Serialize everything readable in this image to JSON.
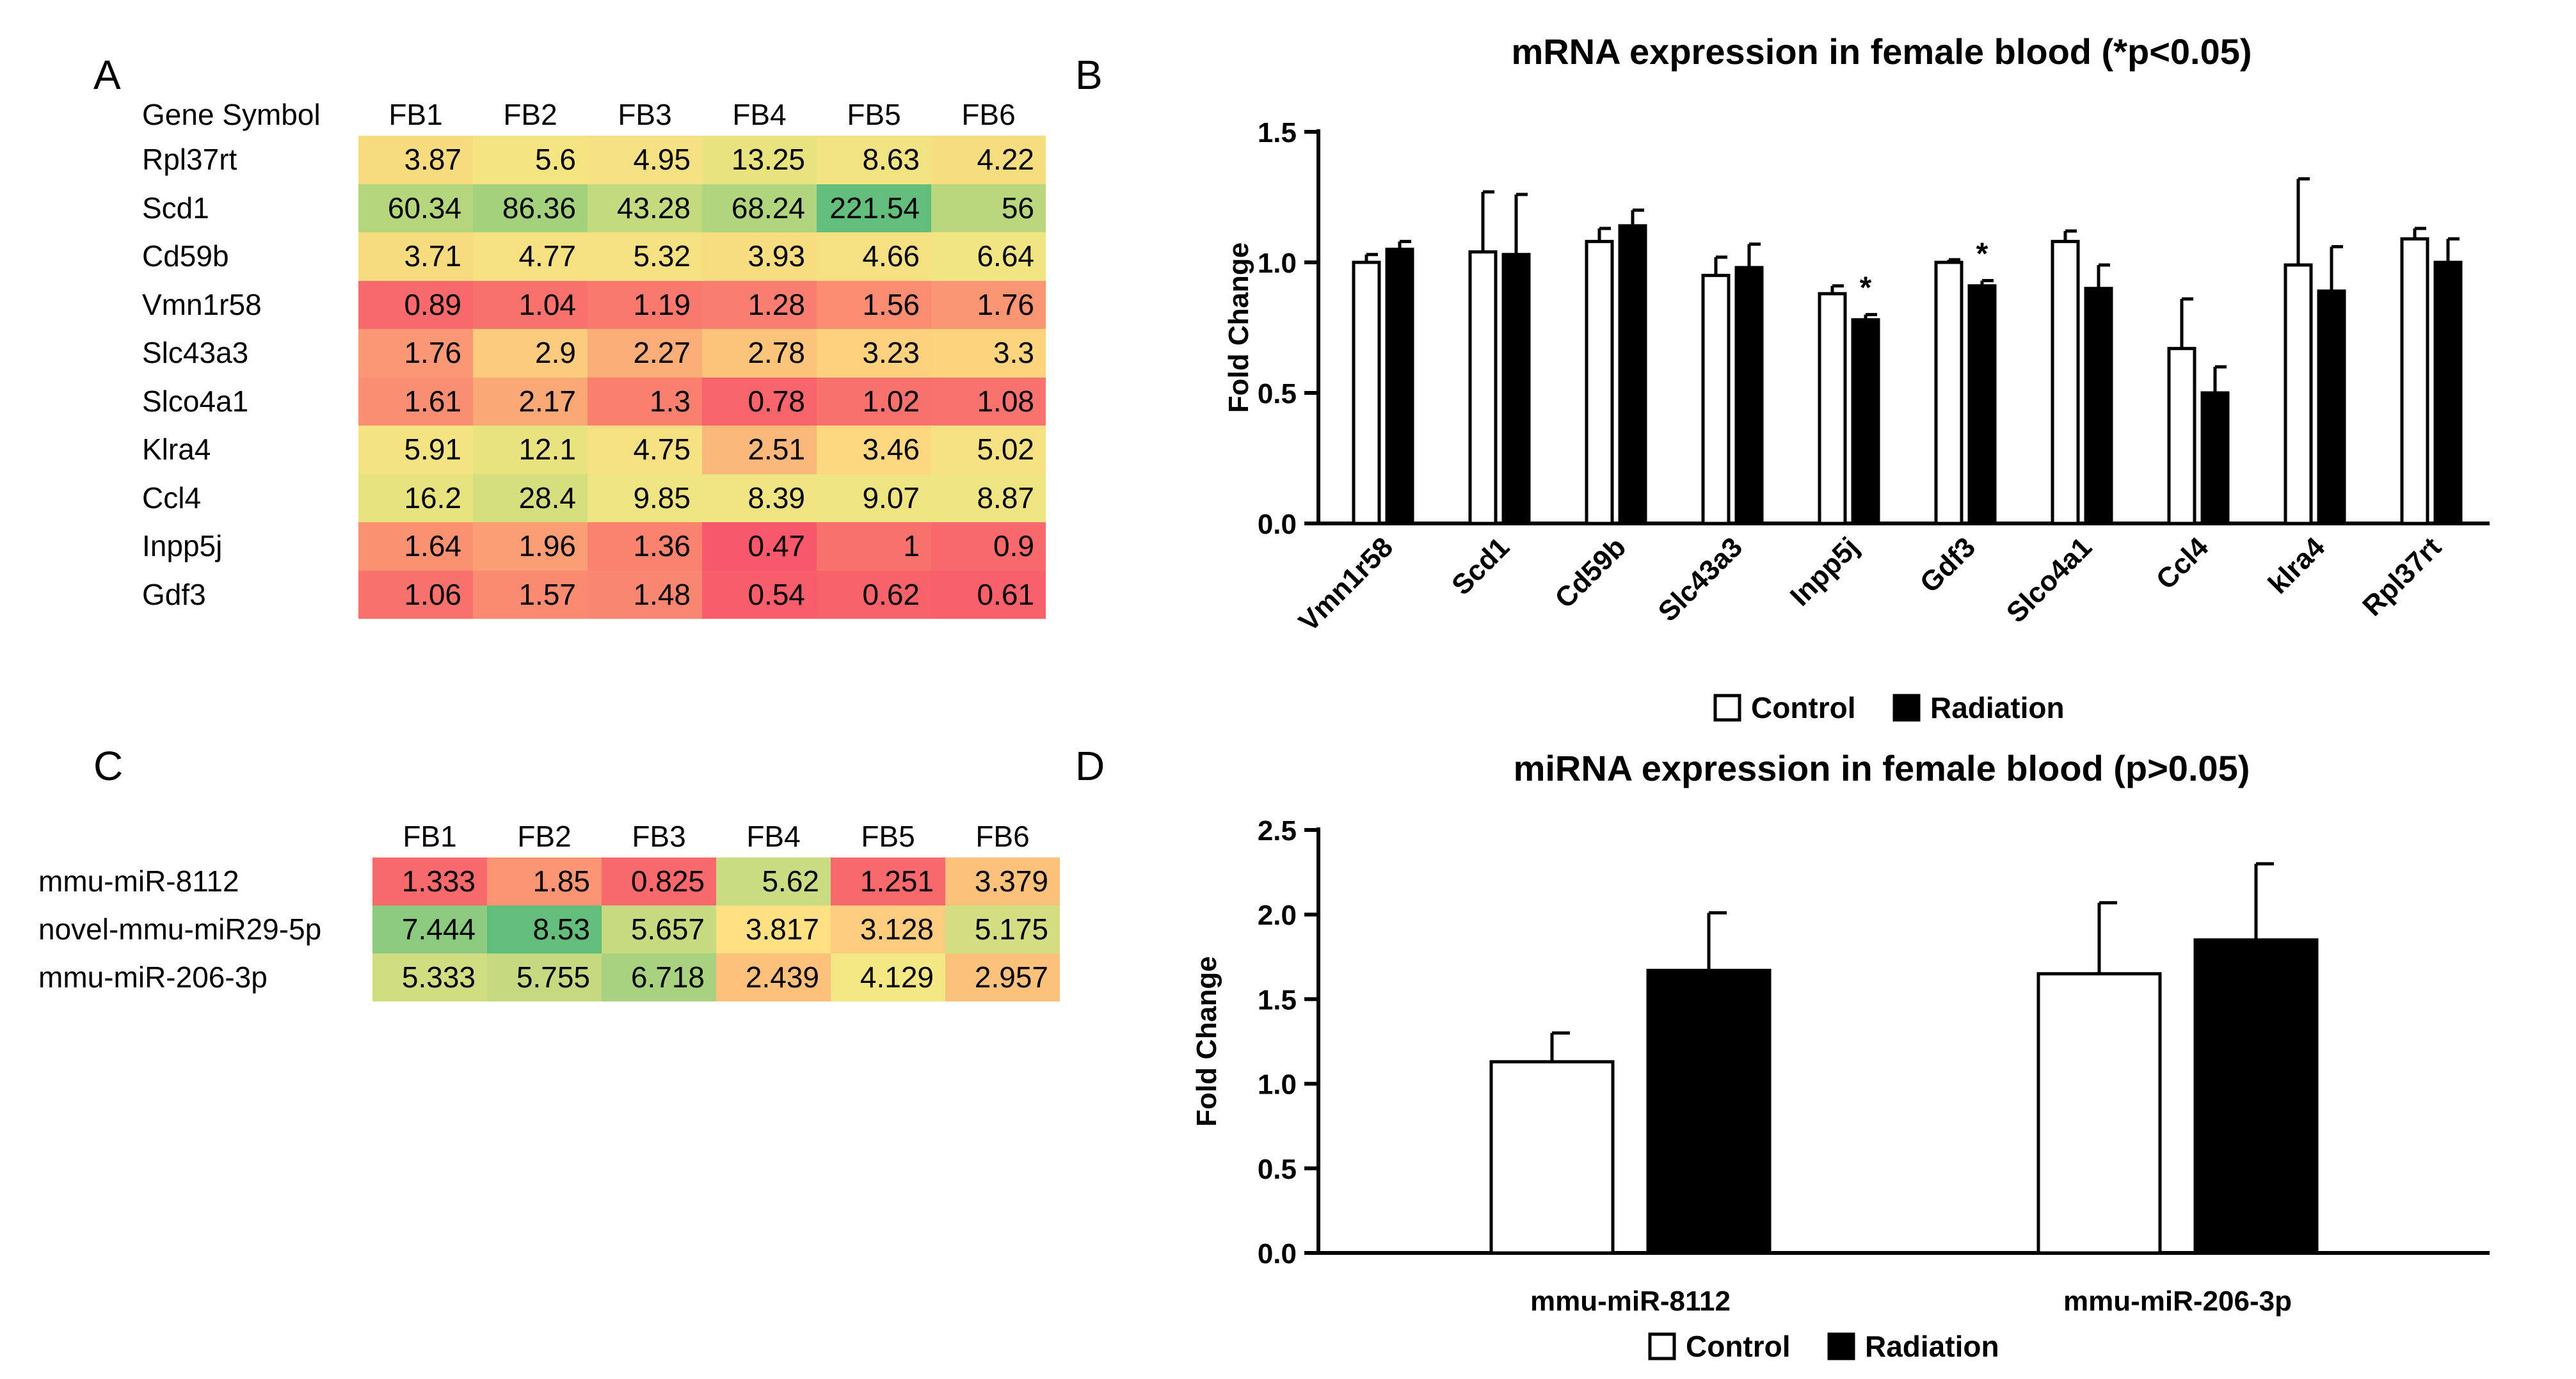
{
  "panels": {
    "a": "A",
    "b": "B",
    "c": "C",
    "d": "D"
  },
  "heatmap_a": {
    "header_label": "Gene Symbol",
    "columns": [
      "FB1",
      "FB2",
      "FB3",
      "FB4",
      "FB5",
      "FB6"
    ],
    "rows": [
      {
        "label": "Rpl37rt",
        "values": [
          "3.87",
          "5.6",
          "4.95",
          "13.25",
          "8.63",
          "4.22"
        ],
        "colors": [
          "#f7dc7f",
          "#f5e482",
          "#f4e183",
          "#e9e37f",
          "#f2e382",
          "#f6dd80"
        ]
      },
      {
        "label": "Scd1",
        "values": [
          "60.34",
          "86.36",
          "43.28",
          "68.24",
          "221.54",
          "56"
        ],
        "colors": [
          "#b5d67d",
          "#a4d17b",
          "#c4da7e",
          "#b1d57c",
          "#63be7b",
          "#bad77d"
        ]
      },
      {
        "label": "Cd59b",
        "values": [
          "3.71",
          "4.77",
          "5.32",
          "3.93",
          "4.66",
          "6.64"
        ],
        "colors": [
          "#f7dc7f",
          "#f5e082",
          "#f4e282",
          "#f7dd80",
          "#f5e082",
          "#f1e482"
        ]
      },
      {
        "label": "Vmn1r58",
        "values": [
          "0.89",
          "1.04",
          "1.19",
          "1.28",
          "1.56",
          "1.76"
        ],
        "colors": [
          "#f8696b",
          "#f8716c",
          "#f9796e",
          "#f97e6f",
          "#fa8c72",
          "#fa9574"
        ]
      },
      {
        "label": "Slc43a3",
        "values": [
          "1.76",
          "2.9",
          "2.27",
          "2.78",
          "3.23",
          "3.3"
        ],
        "colors": [
          "#fa9774",
          "#fccb7c",
          "#fbad78",
          "#fcc47b",
          "#fdd17e",
          "#fdd47e"
        ]
      },
      {
        "label": "Slco4a1",
        "values": [
          "1.61",
          "2.17",
          "1.3",
          "0.78",
          "1.02",
          "1.08"
        ],
        "colors": [
          "#fa8e72",
          "#fba877",
          "#f97f6f",
          "#f8646b",
          "#f8716c",
          "#f8736d"
        ]
      },
      {
        "label": "Klra4",
        "values": [
          "5.91",
          "12.1",
          "4.75",
          "2.51",
          "3.46",
          "5.02"
        ],
        "colors": [
          "#f4e383",
          "#e8e27f",
          "#f5e082",
          "#fbb979",
          "#fdd880",
          "#f5e182"
        ]
      },
      {
        "label": "Ccl4",
        "values": [
          "16.2",
          "28.4",
          "9.85",
          "8.39",
          "9.07",
          "8.87"
        ],
        "colors": [
          "#e7e37f",
          "#d6df7e",
          "#eee482",
          "#f0e482",
          "#efe482",
          "#efe482"
        ]
      },
      {
        "label": "Inpp5j",
        "values": [
          "1.64",
          "1.96",
          "1.36",
          "0.47",
          "1",
          "0.9"
        ],
        "colors": [
          "#fa9272",
          "#fb9e75",
          "#f9836f",
          "#f8586b",
          "#f8716c",
          "#f8696b"
        ]
      },
      {
        "label": "Gdf3",
        "values": [
          "1.06",
          "1.57",
          "1.48",
          "0.54",
          "0.62",
          "0.61"
        ],
        "colors": [
          "#f8716c",
          "#fa8b71",
          "#f98670",
          "#f85d6b",
          "#f8626b",
          "#f8616b"
        ]
      }
    ]
  },
  "heatmap_c": {
    "columns": [
      "FB1",
      "FB2",
      "FB3",
      "FB4",
      "FB5",
      "FB6"
    ],
    "rows": [
      {
        "label": "mmu-miR-8112",
        "values": [
          "1.333",
          "1.85",
          "0.825",
          "5.62",
          "1.251",
          "3.379"
        ],
        "colors": [
          "#f8696b",
          "#fa9473",
          "#f8696b",
          "#c9dc81",
          "#f8696b",
          "#fcc17a"
        ]
      },
      {
        "label": "novel-mmu-miR29-5p",
        "values": [
          "7.444",
          "8.53",
          "5.657",
          "3.817",
          "3.128",
          "5.175"
        ],
        "colors": [
          "#8ccb7e",
          "#63be7b",
          "#c6da80",
          "#fee182",
          "#fdcc7e",
          "#d2de81"
        ]
      },
      {
        "label": "mmu-miR-206-3p",
        "values": [
          "5.333",
          "5.755",
          "6.718",
          "2.439",
          "4.129",
          "2.957"
        ],
        "colors": [
          "#d0dd81",
          "#c5da80",
          "#a8d27f",
          "#fdc17c",
          "#f4e884",
          "#fcc27b"
        ]
      }
    ]
  },
  "chart_data": [
    {
      "type": "bar",
      "title": "mRNA expression in female blood (*p<0.05)",
      "xlabel": "",
      "ylabel": "Fold Change",
      "ylim": [
        0,
        1.5
      ],
      "yticks": [
        "0.0",
        "0.5",
        "1.0",
        "1.5"
      ],
      "categories": [
        "Vmn1r58",
        "Scd1",
        "Cd59b",
        "Slc43a3",
        "Inpp5j",
        "Gdf3",
        "Slco4a1",
        "Ccl4",
        "klra4",
        "Rpl37rt"
      ],
      "series": [
        {
          "name": "Control",
          "color": "#ffffff",
          "values": [
            1.0,
            1.04,
            1.08,
            0.95,
            0.88,
            1.0,
            1.08,
            0.67,
            0.99,
            1.09
          ],
          "errors": [
            0.03,
            0.23,
            0.05,
            0.07,
            0.03,
            0.01,
            0.04,
            0.19,
            0.33,
            0.04
          ]
        },
        {
          "name": "Radiation",
          "color": "#000000",
          "values": [
            1.05,
            1.03,
            1.14,
            0.98,
            0.78,
            0.91,
            0.9,
            0.5,
            0.89,
            1.0
          ],
          "errors": [
            0.03,
            0.23,
            0.06,
            0.09,
            0.02,
            0.02,
            0.09,
            0.1,
            0.17,
            0.09
          ]
        }
      ],
      "annotations": [
        {
          "category": "Inpp5j",
          "text": "*"
        },
        {
          "category": "Gdf3",
          "text": "*"
        }
      ],
      "legend": "bottom-center"
    },
    {
      "type": "bar",
      "title": "miRNA expression in female blood (p>0.05)",
      "xlabel": "",
      "ylabel": "Fold Change",
      "ylim": [
        0,
        2.5
      ],
      "yticks": [
        "0.0",
        "0.5",
        "1.0",
        "1.5",
        "2.0",
        "2.5"
      ],
      "categories": [
        "mmu-miR-8112",
        "mmu-miR-206-3p"
      ],
      "series": [
        {
          "name": "Control",
          "color": "#ffffff",
          "values": [
            1.13,
            1.65
          ],
          "errors": [
            0.17,
            0.42
          ]
        },
        {
          "name": "Radiation",
          "color": "#000000",
          "values": [
            1.67,
            1.85
          ],
          "errors": [
            0.34,
            0.45
          ]
        }
      ],
      "legend": "bottom-center"
    }
  ]
}
